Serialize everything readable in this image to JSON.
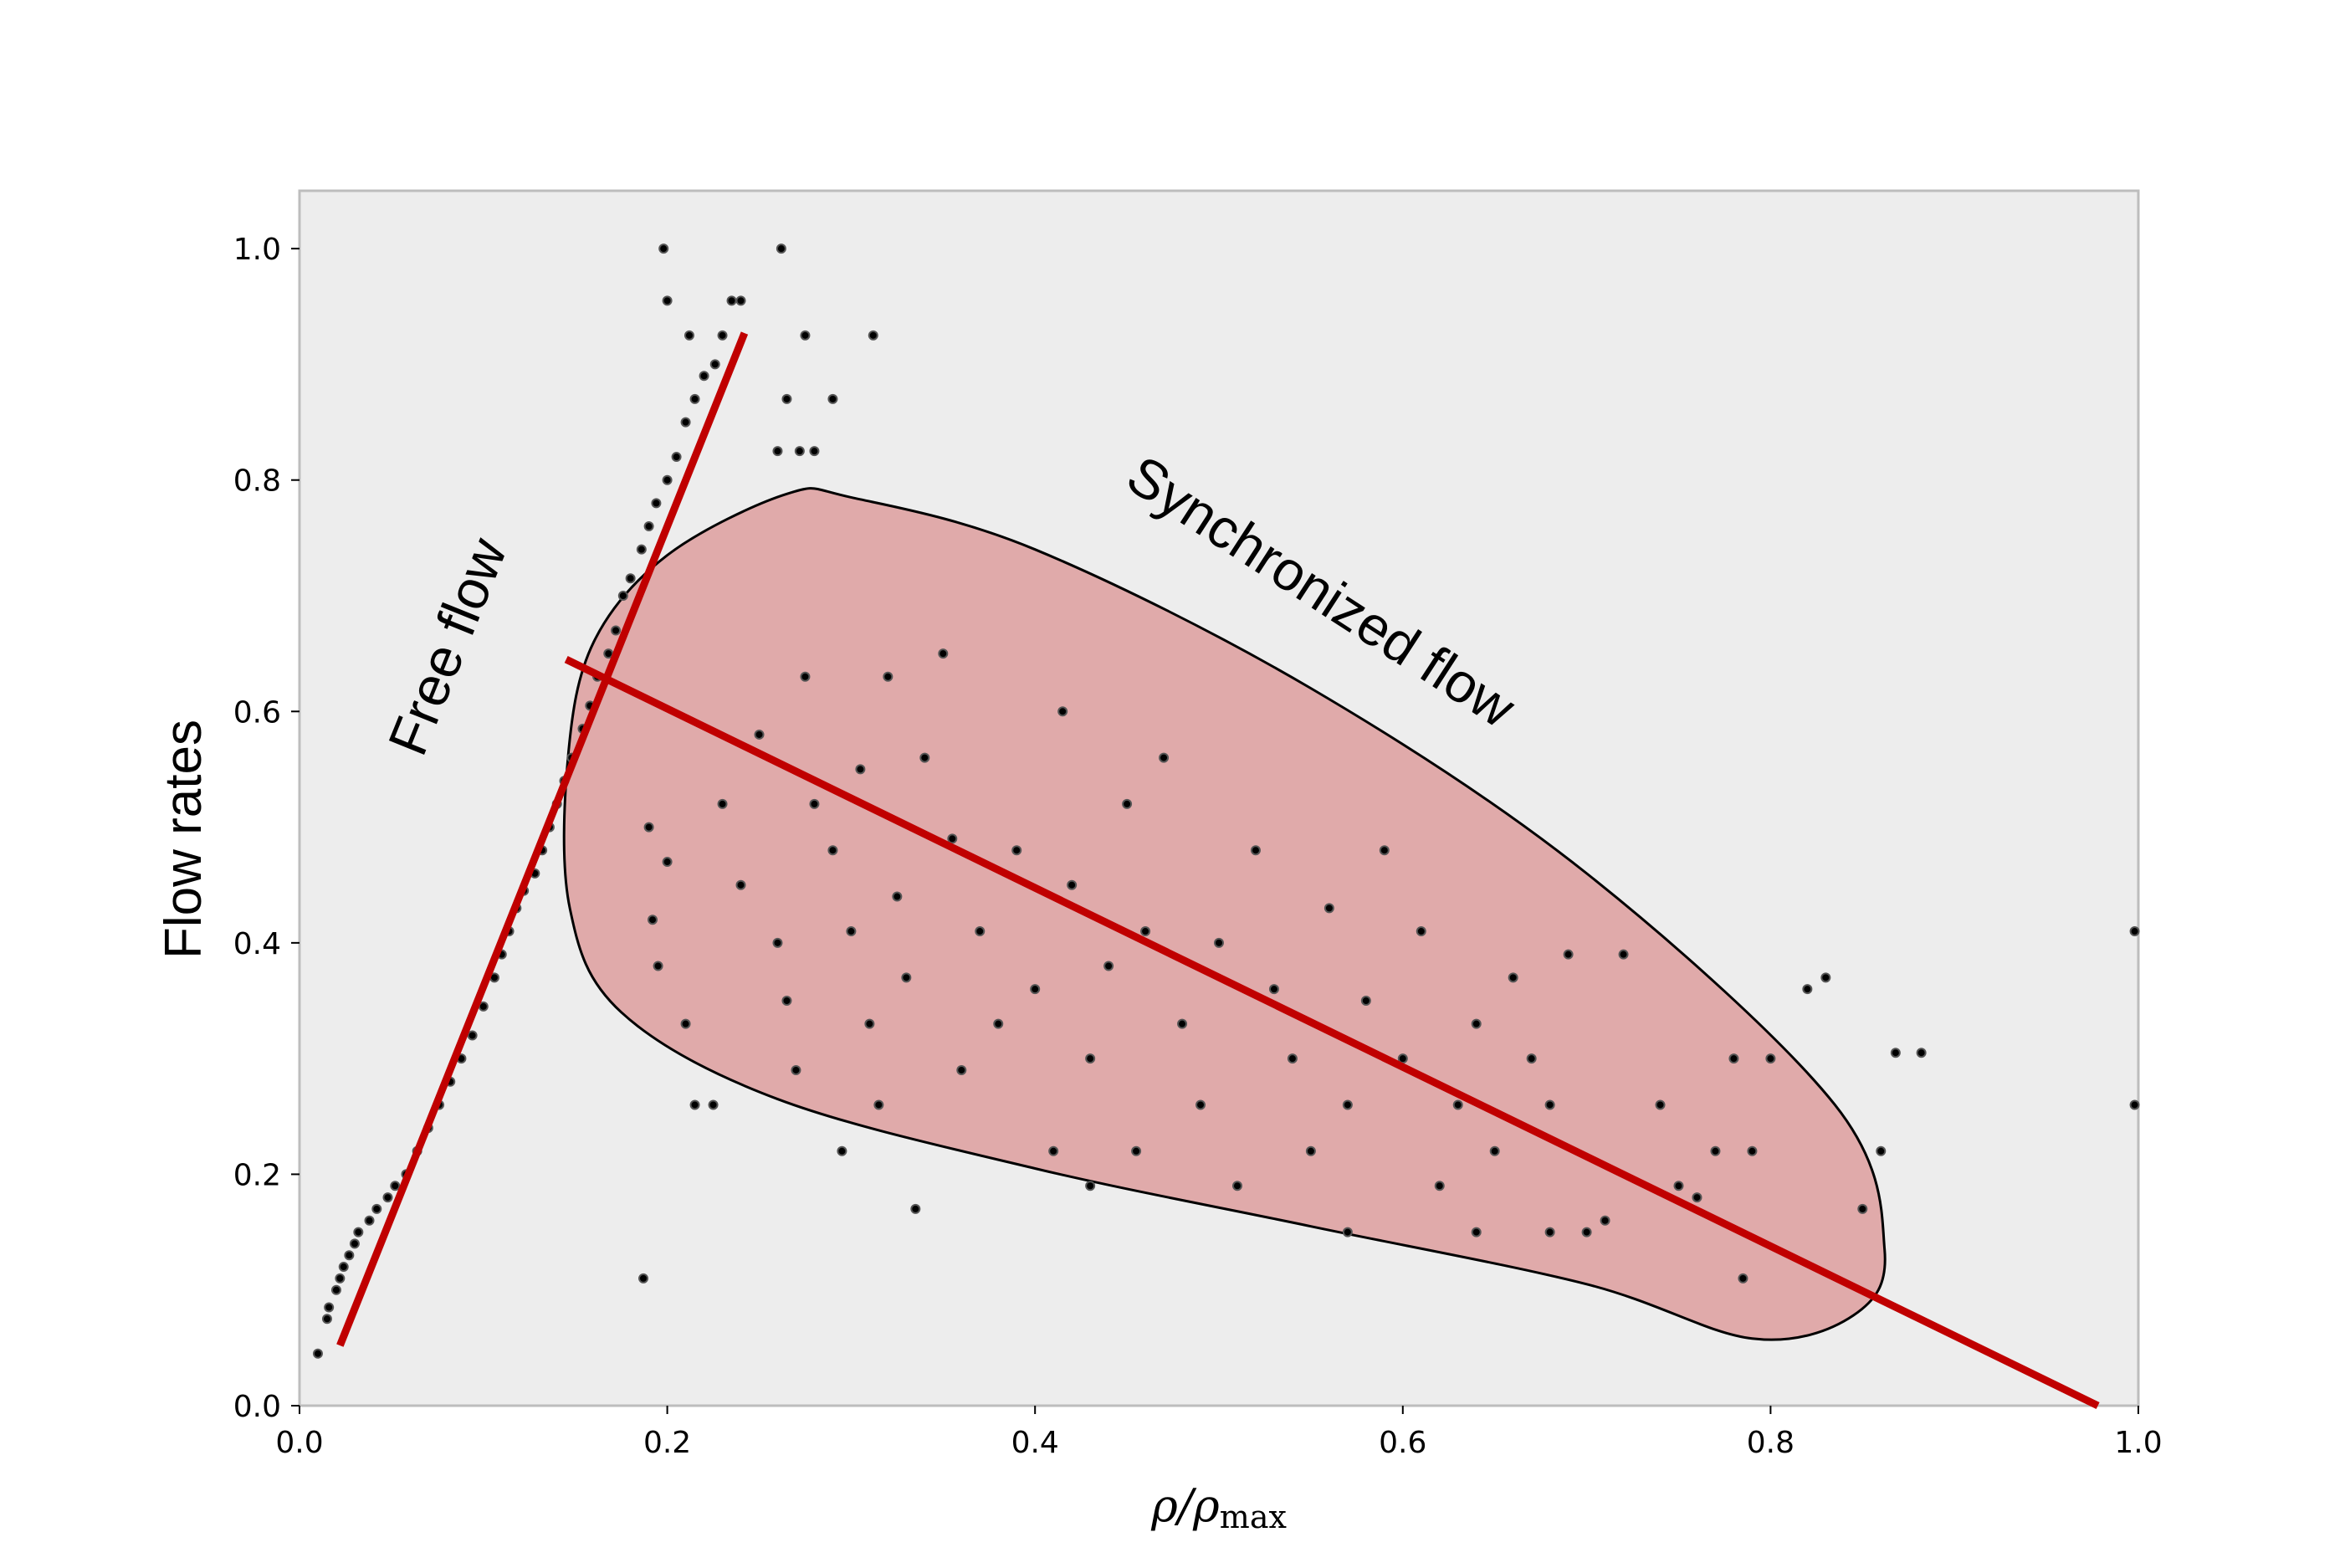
{
  "chart_data": {
    "type": "scatter",
    "title": "",
    "xlabel_main": "ρ/ρ",
    "xlabel_sub": "max",
    "ylabel": "Flow rates",
    "xlim": [
      0.0,
      1.0
    ],
    "ylim": [
      0.0,
      1.05
    ],
    "x_ticks": [
      "0.0",
      "0.2",
      "0.4",
      "0.6",
      "0.8",
      "1.0"
    ],
    "y_ticks": [
      "0.0",
      "0.2",
      "0.4",
      "0.6",
      "0.8",
      "1.0"
    ],
    "grid": false,
    "legend": "none",
    "colors": {
      "plot_background": "#ededed",
      "points": "#000000",
      "fit_lines": "#c00000",
      "synchronized_region_fill": "#e0aaaa"
    },
    "annotations": [
      {
        "text": "Free flow",
        "x": 0.09,
        "y": 0.65,
        "rotation_deg": -68
      },
      {
        "text": "Synchronized flow",
        "x": 0.55,
        "y": 0.69,
        "rotation_deg": 33
      }
    ],
    "lines": [
      {
        "name": "",
        "points": [
          [
            0.022,
            0.052
          ],
          [
            0.242,
            0.927
          ]
        ]
      },
      {
        "name": "",
        "points": [
          [
            0.145,
            0.645
          ],
          [
            0.978,
            0.0
          ]
        ]
      }
    ],
    "region": {
      "label": "Synchronized flow",
      "outline": [
        [
          0.265,
          0.788
        ],
        [
          0.2,
          0.735
        ],
        [
          0.16,
          0.66
        ],
        [
          0.146,
          0.56
        ],
        [
          0.147,
          0.43
        ],
        [
          0.175,
          0.34
        ],
        [
          0.26,
          0.265
        ],
        [
          0.4,
          0.205
        ],
        [
          0.55,
          0.155
        ],
        [
          0.7,
          0.105
        ],
        [
          0.79,
          0.058
        ],
        [
          0.845,
          0.078
        ],
        [
          0.862,
          0.135
        ],
        [
          0.835,
          0.26
        ],
        [
          0.7,
          0.46
        ],
        [
          0.55,
          0.62
        ],
        [
          0.4,
          0.74
        ],
        [
          0.3,
          0.785
        ]
      ]
    },
    "series": [
      {
        "name": "",
        "points": [
          [
            0.01,
            0.045
          ],
          [
            0.015,
            0.075
          ],
          [
            0.016,
            0.085
          ],
          [
            0.02,
            0.1
          ],
          [
            0.022,
            0.11
          ],
          [
            0.024,
            0.12
          ],
          [
            0.027,
            0.13
          ],
          [
            0.03,
            0.14
          ],
          [
            0.032,
            0.15
          ],
          [
            0.038,
            0.16
          ],
          [
            0.042,
            0.17
          ],
          [
            0.048,
            0.18
          ],
          [
            0.052,
            0.19
          ],
          [
            0.058,
            0.2
          ],
          [
            0.064,
            0.22
          ],
          [
            0.07,
            0.24
          ],
          [
            0.076,
            0.26
          ],
          [
            0.082,
            0.28
          ],
          [
            0.088,
            0.3
          ],
          [
            0.094,
            0.32
          ],
          [
            0.1,
            0.345
          ],
          [
            0.106,
            0.37
          ],
          [
            0.11,
            0.39
          ],
          [
            0.114,
            0.41
          ],
          [
            0.118,
            0.43
          ],
          [
            0.122,
            0.445
          ],
          [
            0.128,
            0.46
          ],
          [
            0.132,
            0.48
          ],
          [
            0.136,
            0.5
          ],
          [
            0.14,
            0.52
          ],
          [
            0.144,
            0.54
          ],
          [
            0.148,
            0.56
          ],
          [
            0.154,
            0.585
          ],
          [
            0.158,
            0.605
          ],
          [
            0.162,
            0.63
          ],
          [
            0.168,
            0.65
          ],
          [
            0.172,
            0.67
          ],
          [
            0.176,
            0.7
          ],
          [
            0.18,
            0.715
          ],
          [
            0.186,
            0.74
          ],
          [
            0.19,
            0.76
          ],
          [
            0.194,
            0.78
          ],
          [
            0.2,
            0.8
          ],
          [
            0.205,
            0.82
          ],
          [
            0.21,
            0.85
          ],
          [
            0.215,
            0.87
          ],
          [
            0.22,
            0.89
          ],
          [
            0.226,
            0.9
          ],
          [
            0.23,
            0.925
          ],
          [
            0.198,
            1.0
          ],
          [
            0.262,
            1.0
          ],
          [
            0.2,
            0.955
          ],
          [
            0.235,
            0.955
          ],
          [
            0.24,
            0.955
          ],
          [
            0.275,
            0.925
          ],
          [
            0.312,
            0.925
          ],
          [
            0.212,
            0.925
          ],
          [
            0.265,
            0.87
          ],
          [
            0.29,
            0.87
          ],
          [
            0.26,
            0.825
          ],
          [
            0.272,
            0.825
          ],
          [
            0.28,
            0.825
          ],
          [
            0.187,
            0.11
          ],
          [
            0.215,
            0.26
          ],
          [
            0.225,
            0.26
          ],
          [
            0.19,
            0.5
          ],
          [
            0.192,
            0.42
          ],
          [
            0.195,
            0.38
          ],
          [
            0.2,
            0.47
          ],
          [
            0.21,
            0.33
          ],
          [
            0.23,
            0.52
          ],
          [
            0.24,
            0.45
          ],
          [
            0.25,
            0.58
          ],
          [
            0.26,
            0.4
          ],
          [
            0.265,
            0.35
          ],
          [
            0.27,
            0.29
          ],
          [
            0.275,
            0.63
          ],
          [
            0.28,
            0.52
          ],
          [
            0.29,
            0.48
          ],
          [
            0.295,
            0.22
          ],
          [
            0.3,
            0.41
          ],
          [
            0.305,
            0.55
          ],
          [
            0.31,
            0.33
          ],
          [
            0.315,
            0.26
          ],
          [
            0.32,
            0.63
          ],
          [
            0.325,
            0.44
          ],
          [
            0.33,
            0.37
          ],
          [
            0.34,
            0.56
          ],
          [
            0.35,
            0.65
          ],
          [
            0.355,
            0.49
          ],
          [
            0.36,
            0.29
          ],
          [
            0.37,
            0.41
          ],
          [
            0.38,
            0.33
          ],
          [
            0.39,
            0.48
          ],
          [
            0.4,
            0.36
          ],
          [
            0.41,
            0.22
          ],
          [
            0.415,
            0.6
          ],
          [
            0.42,
            0.45
          ],
          [
            0.43,
            0.3
          ],
          [
            0.44,
            0.38
          ],
          [
            0.45,
            0.52
          ],
          [
            0.455,
            0.22
          ],
          [
            0.46,
            0.41
          ],
          [
            0.47,
            0.56
          ],
          [
            0.48,
            0.33
          ],
          [
            0.49,
            0.26
          ],
          [
            0.5,
            0.4
          ],
          [
            0.51,
            0.19
          ],
          [
            0.52,
            0.48
          ],
          [
            0.53,
            0.36
          ],
          [
            0.54,
            0.3
          ],
          [
            0.55,
            0.22
          ],
          [
            0.56,
            0.43
          ],
          [
            0.57,
            0.26
          ],
          [
            0.58,
            0.35
          ],
          [
            0.59,
            0.48
          ],
          [
            0.6,
            0.3
          ],
          [
            0.61,
            0.41
          ],
          [
            0.62,
            0.19
          ],
          [
            0.63,
            0.26
          ],
          [
            0.64,
            0.33
          ],
          [
            0.65,
            0.22
          ],
          [
            0.66,
            0.37
          ],
          [
            0.67,
            0.3
          ],
          [
            0.68,
            0.26
          ],
          [
            0.69,
            0.39
          ],
          [
            0.7,
            0.15
          ],
          [
            0.72,
            0.39
          ],
          [
            0.74,
            0.26
          ],
          [
            0.75,
            0.19
          ],
          [
            0.77,
            0.22
          ],
          [
            0.78,
            0.3
          ],
          [
            0.785,
            0.11
          ],
          [
            0.8,
            0.3
          ],
          [
            0.82,
            0.36
          ],
          [
            0.83,
            0.37
          ],
          [
            0.85,
            0.17
          ],
          [
            0.86,
            0.22
          ],
          [
            0.868,
            0.305
          ],
          [
            0.882,
            0.305
          ],
          [
            0.998,
            0.41
          ],
          [
            0.998,
            0.26
          ],
          [
            0.335,
            0.17
          ],
          [
            0.43,
            0.19
          ],
          [
            0.57,
            0.15
          ],
          [
            0.64,
            0.15
          ],
          [
            0.68,
            0.15
          ],
          [
            0.71,
            0.16
          ],
          [
            0.76,
            0.18
          ],
          [
            0.79,
            0.22
          ]
        ]
      }
    ]
  }
}
